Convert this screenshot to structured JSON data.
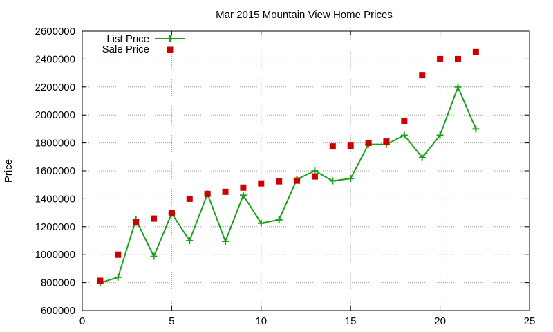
{
  "chart_data": {
    "type": "line",
    "title": "Mar 2015 Mountain View Home Prices",
    "xlabel": "",
    "ylabel": "Price",
    "xlim": [
      0,
      25
    ],
    "ylim": [
      600000,
      2600000
    ],
    "x_ticks": [
      0,
      5,
      10,
      15,
      20,
      25
    ],
    "y_ticks": [
      600000,
      800000,
      1000000,
      1200000,
      1400000,
      1600000,
      1800000,
      2000000,
      2200000,
      2400000,
      2600000
    ],
    "grid": true,
    "legend_position": "top-left",
    "series": [
      {
        "name": "List Price",
        "style": "line-with-plus-markers",
        "color": "#1aa01a",
        "x": [
          1,
          2,
          3,
          4,
          5,
          6,
          7,
          8,
          9,
          10,
          11,
          12,
          13,
          14,
          15,
          16,
          17,
          18,
          19,
          20,
          21,
          22
        ],
        "y": [
          799000,
          838000,
          1250000,
          988000,
          1295000,
          1100000,
          1435000,
          1095000,
          1425000,
          1225000,
          1250000,
          1540000,
          1600000,
          1528000,
          1545000,
          1790000,
          1790000,
          1855000,
          1695000,
          1855000,
          2200000,
          1900000
        ]
      },
      {
        "name": "Sale Price",
        "style": "square-markers",
        "color": "#cc0000",
        "x": [
          1,
          2,
          3,
          4,
          5,
          6,
          7,
          8,
          9,
          10,
          11,
          12,
          13,
          14,
          15,
          16,
          17,
          18,
          19,
          20,
          21,
          22
        ],
        "y": [
          813000,
          1000000,
          1230000,
          1258000,
          1300000,
          1400000,
          1435000,
          1450000,
          1480000,
          1510000,
          1525000,
          1530000,
          1560000,
          1775000,
          1780000,
          1800000,
          1810000,
          1955000,
          2285000,
          2400000,
          2400000,
          2450000
        ]
      }
    ]
  }
}
